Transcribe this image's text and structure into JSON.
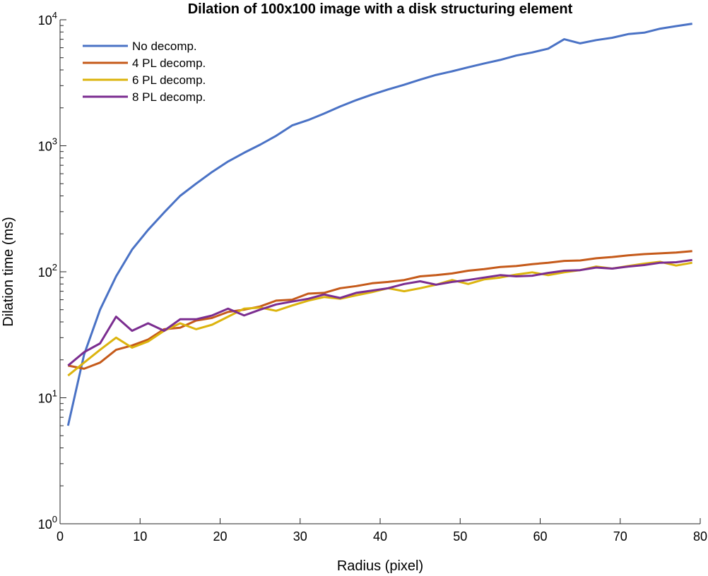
{
  "chart_data": {
    "type": "line",
    "title": "Dilation of 100x100 image with a disk structuring element",
    "xlabel": "Radius (pixel)",
    "ylabel": "Dilation time (ms)",
    "xlim": [
      0,
      80
    ],
    "ylim": [
      1,
      10000
    ],
    "yscale": "log",
    "x_ticks": [
      "0",
      "10",
      "20",
      "30",
      "40",
      "50",
      "60",
      "70",
      "80"
    ],
    "y_ticks": [
      {
        "base": "10",
        "exp": "0"
      },
      {
        "base": "10",
        "exp": "1"
      },
      {
        "base": "10",
        "exp": "2"
      },
      {
        "base": "10",
        "exp": "3"
      },
      {
        "base": "10",
        "exp": "4"
      }
    ],
    "grid": false,
    "legend_position": "top-left",
    "x": [
      1,
      3,
      5,
      7,
      9,
      11,
      13,
      15,
      17,
      19,
      21,
      23,
      25,
      27,
      29,
      31,
      33,
      35,
      37,
      39,
      41,
      43,
      45,
      47,
      49,
      51,
      53,
      55,
      57,
      59,
      61,
      63,
      65,
      67,
      69,
      71,
      73,
      75,
      77,
      79
    ],
    "series": [
      {
        "name": "No decomp.",
        "color": "#4a72c5",
        "values": [
          6,
          22,
          50,
          92,
          150,
          215,
          295,
          400,
          500,
          620,
          750,
          880,
          1020,
          1200,
          1450,
          1600,
          1800,
          2050,
          2300,
          2550,
          2800,
          3050,
          3350,
          3650,
          3900,
          4200,
          4500,
          4800,
          5200,
          5500,
          5900,
          7000,
          6500,
          6900,
          7200,
          7700,
          7900,
          8500,
          8900,
          9300
        ]
      },
      {
        "name": "4 PL decomp.",
        "color": "#c55a1a",
        "values": [
          18,
          17,
          19,
          24,
          26,
          29,
          35,
          36,
          41,
          43,
          48,
          50,
          53,
          59,
          60,
          67,
          68,
          74,
          77,
          81,
          83,
          86,
          92,
          94,
          97,
          102,
          105,
          109,
          111,
          115,
          118,
          122,
          123,
          128,
          131,
          135,
          138,
          140,
          142,
          146
        ]
      },
      {
        "name": "6 PL decomp.",
        "color": "#dcb40e",
        "values": [
          15,
          19,
          24,
          30,
          25,
          28,
          34,
          39,
          35,
          38,
          44,
          51,
          52,
          49,
          54,
          59,
          63,
          61,
          65,
          69,
          74,
          70,
          74,
          79,
          86,
          80,
          87,
          90,
          95,
          99,
          94,
          99,
          103,
          110,
          106,
          111,
          116,
          120,
          112,
          118
        ]
      },
      {
        "name": "8 PL decomp.",
        "color": "#7b2d90",
        "values": [
          18,
          23,
          27,
          44,
          34,
          39,
          34,
          42,
          42,
          45,
          51,
          45,
          50,
          55,
          58,
          61,
          66,
          62,
          68,
          71,
          74,
          80,
          84,
          79,
          83,
          86,
          90,
          94,
          92,
          93,
          98,
          102,
          103,
          108,
          106,
          110,
          113,
          118,
          119,
          124
        ]
      }
    ]
  }
}
